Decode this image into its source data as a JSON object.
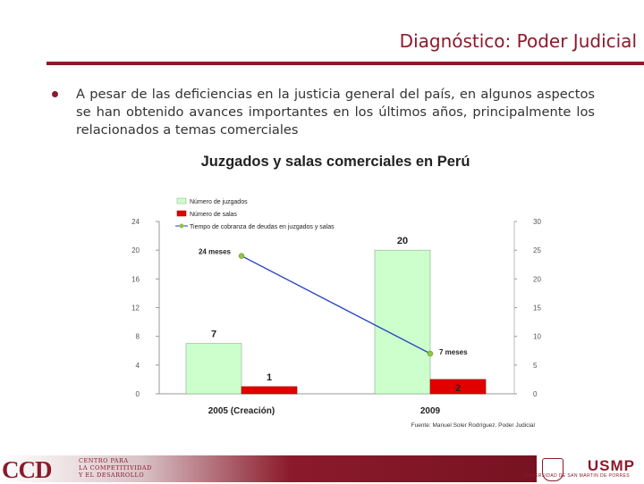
{
  "slide": {
    "title": "Diagnóstico: Poder Judicial",
    "bullet": "A pesar de las deficiencias en la justicia general del país, en algunos aspectos se han obtenido avances importantes en los últimos años, principalmente los relacionados a temas comerciales"
  },
  "chart_data": {
    "type": "bar",
    "title": "Juzgados y salas comerciales en Perú",
    "categories": [
      "2005 (Creación)",
      "2009"
    ],
    "series": [
      {
        "name": "Número de juzgados",
        "type": "bar",
        "axis": "left",
        "values": [
          7,
          20
        ],
        "labels": [
          "7",
          "20"
        ],
        "color": "#CCFFCC"
      },
      {
        "name": "Número de salas",
        "type": "bar",
        "axis": "left",
        "values": [
          1,
          2
        ],
        "labels": [
          "1",
          "2"
        ],
        "color": "#E00000"
      },
      {
        "name": "Tiempo de cobranza de deudas en juzgados y salas",
        "type": "line",
        "axis": "right",
        "values": [
          24,
          7
        ],
        "labels": [
          "24 meses",
          "7 meses"
        ],
        "color": "#1F3FBF",
        "marker_color": "#8DC63F"
      }
    ],
    "y_left": {
      "range": [
        0,
        24
      ],
      "ticks": [
        "0",
        "4",
        "8",
        "12",
        "16",
        "20",
        "24"
      ]
    },
    "y_right": {
      "range": [
        0,
        30
      ],
      "ticks": [
        "0",
        "5",
        "10",
        "15",
        "20",
        "25",
        "30"
      ]
    },
    "grid": false,
    "legend_position": "top-left",
    "source": "Fuente: Manuel Soler Rodríguez. Poder Judicial"
  },
  "footer": {
    "left_logo": "CCD",
    "left_logo_lines": [
      "CENTRO PARA",
      "LA COMPETITIVIDAD",
      "Y EL DESARROLLO"
    ],
    "right_logo": "USMP",
    "right_logo_sub": "UNIVERSIDAD DE SAN MARTIN DE PORRES"
  }
}
